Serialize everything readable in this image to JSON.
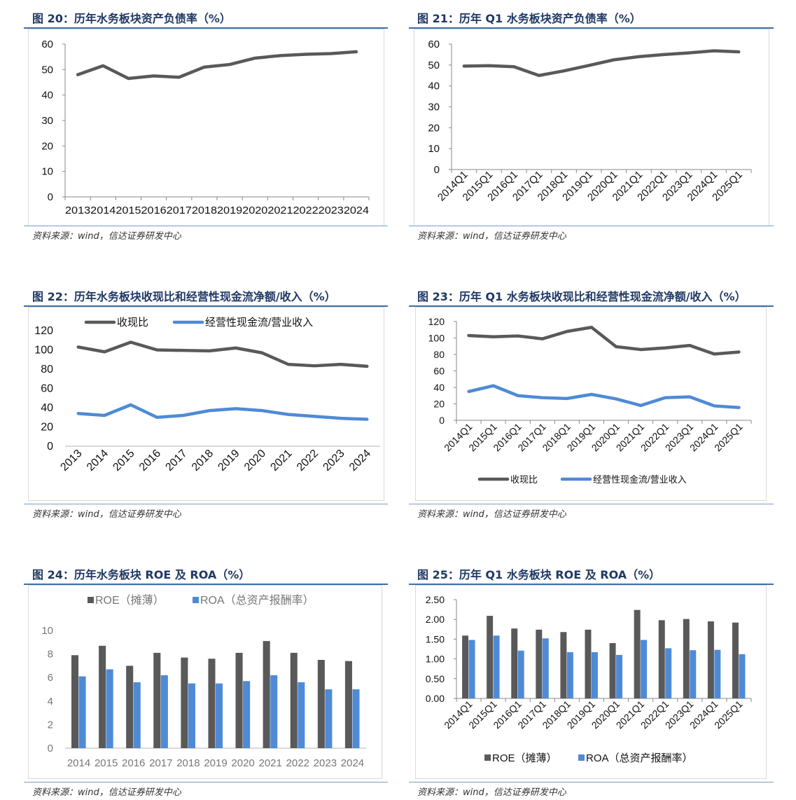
{
  "source_text": "资料来源：wind，信达证券研发中心",
  "colors": {
    "dark": "#595959",
    "blue": "#4f8ad6",
    "title": "#1f3864",
    "rule": "#3c6ea8"
  },
  "chart_data": [
    {
      "title": "图 20：历年水务板块资产负债率（%）",
      "type": "line",
      "categories": [
        "2013",
        "2014",
        "2015",
        "2016",
        "2017",
        "2018",
        "2019",
        "2020",
        "2021",
        "2022",
        "2023",
        "2024"
      ],
      "series": [
        {
          "values": [
            48.0,
            51.5,
            46.5,
            47.5,
            47.0,
            51.0,
            52.0,
            54.5,
            55.5,
            56.0,
            56.3,
            57.0
          ],
          "color": "#595959"
        }
      ],
      "ylim": [
        0,
        60
      ],
      "yticks": [
        "0",
        "10",
        "20",
        "30",
        "40",
        "50",
        "60"
      ],
      "grid": false,
      "legend": "none"
    },
    {
      "title": "图 21：历年 Q1 水务板块资产负债率（%）",
      "type": "line",
      "categories": [
        "2014Q1",
        "2015Q1",
        "2016Q1",
        "2017Q1",
        "2018Q1",
        "2019Q1",
        "2020Q1",
        "2021Q1",
        "2022Q1",
        "2023Q1",
        "2024Q1",
        "2025Q1"
      ],
      "series": [
        {
          "values": [
            49.5,
            49.7,
            49.2,
            45.0,
            47.2,
            49.8,
            52.5,
            54.0,
            55.0,
            55.8,
            56.8,
            56.3
          ],
          "color": "#595959"
        }
      ],
      "ylim": [
        0,
        60
      ],
      "yticks": [
        "0",
        "10",
        "20",
        "30",
        "40",
        "50",
        "60"
      ],
      "grid": false,
      "legend": "none"
    },
    {
      "title": "图 22：历年水务板块收现比和经营性现金流净额/收入（%）",
      "type": "line",
      "categories": [
        "2013",
        "2014",
        "2015",
        "2016",
        "2017",
        "2018",
        "2019",
        "2020",
        "2021",
        "2022",
        "2023",
        "2024"
      ],
      "series": [
        {
          "name": "收现比",
          "values": [
            103,
            98,
            108,
            100,
            99.5,
            99,
            102,
            97,
            85,
            83.5,
            85,
            83
          ],
          "color": "#595959"
        },
        {
          "name": "经营性现金流/营业收入",
          "values": [
            34,
            32,
            43,
            30,
            32,
            37,
            39,
            37,
            33,
            31,
            29,
            28
          ],
          "color": "#4f8ad6"
        }
      ],
      "ylim": [
        0,
        120
      ],
      "yticks": [
        "0",
        "20",
        "40",
        "60",
        "80",
        "100",
        "120"
      ],
      "grid": false,
      "legend": "top"
    },
    {
      "title": "图 23：历年 Q1 水务板块收现比和经营性现金流净额/收入（%）",
      "type": "line",
      "categories": [
        "2014Q1",
        "2015Q1",
        "2016Q1",
        "2017Q1",
        "2018Q1",
        "2019Q1",
        "2020Q1",
        "2021Q1",
        "2022Q1",
        "2023Q1",
        "2024Q1",
        "2025Q1"
      ],
      "series": [
        {
          "name": "收现比",
          "values": [
            103,
            101.5,
            102.5,
            99,
            108,
            113,
            89.5,
            86,
            88,
            91,
            80.5,
            83
          ],
          "color": "#595959"
        },
        {
          "name": "经营性现金流/营业收入",
          "values": [
            35,
            42,
            30,
            27.5,
            26.5,
            31.5,
            26,
            18,
            27.5,
            28.5,
            17.5,
            15.5
          ],
          "color": "#4f8ad6"
        }
      ],
      "ylim": [
        0,
        120
      ],
      "yticks": [
        "0",
        "20",
        "40",
        "60",
        "80",
        "100",
        "120"
      ],
      "grid": false,
      "legend": "bottom"
    },
    {
      "title": "图 24：历年水务板块 ROE 及 ROA（%）",
      "type": "bar",
      "categories": [
        "2014",
        "2015",
        "2016",
        "2017",
        "2018",
        "2019",
        "2020",
        "2021",
        "2022",
        "2023",
        "2024"
      ],
      "series": [
        {
          "name": "ROE（摊薄）",
          "values": [
            7.9,
            8.7,
            7.0,
            8.1,
            7.7,
            7.6,
            8.1,
            9.1,
            8.1,
            7.5,
            7.4
          ],
          "color": "#595959"
        },
        {
          "name": "ROA（总资产报酬率）",
          "values": [
            6.1,
            6.7,
            5.6,
            6.2,
            5.5,
            5.5,
            5.7,
            6.2,
            5.6,
            5.0,
            5.0
          ],
          "color": "#4f8ad6"
        }
      ],
      "ylim": [
        0,
        10
      ],
      "yticks": [
        "0",
        "2",
        "4",
        "6",
        "8",
        "10"
      ],
      "grid": false,
      "legend": "top"
    },
    {
      "title": "图 25：历年 Q1 水务板块 ROE 及 ROA（%）",
      "type": "bar",
      "categories": [
        "2014Q1",
        "2015Q1",
        "2016Q1",
        "2017Q1",
        "2018Q1",
        "2019Q1",
        "2020Q1",
        "2021Q1",
        "2022Q1",
        "2023Q1",
        "2024Q1",
        "2025Q1"
      ],
      "series": [
        {
          "name": "ROE（摊薄）",
          "values": [
            1.59,
            2.09,
            1.77,
            1.74,
            1.68,
            1.74,
            1.4,
            2.24,
            1.98,
            2.01,
            1.95,
            1.92
          ],
          "color": "#595959"
        },
        {
          "name": "ROA（总资产报酬率）",
          "values": [
            1.48,
            1.59,
            1.21,
            1.52,
            1.17,
            1.17,
            1.1,
            1.48,
            1.27,
            1.22,
            1.23,
            1.12
          ],
          "color": "#4f8ad6"
        }
      ],
      "ylim": [
        0,
        2.5
      ],
      "yticks": [
        "0.00",
        "0.50",
        "1.00",
        "1.50",
        "2.00",
        "2.50"
      ],
      "grid": false,
      "legend": "bottom"
    }
  ]
}
